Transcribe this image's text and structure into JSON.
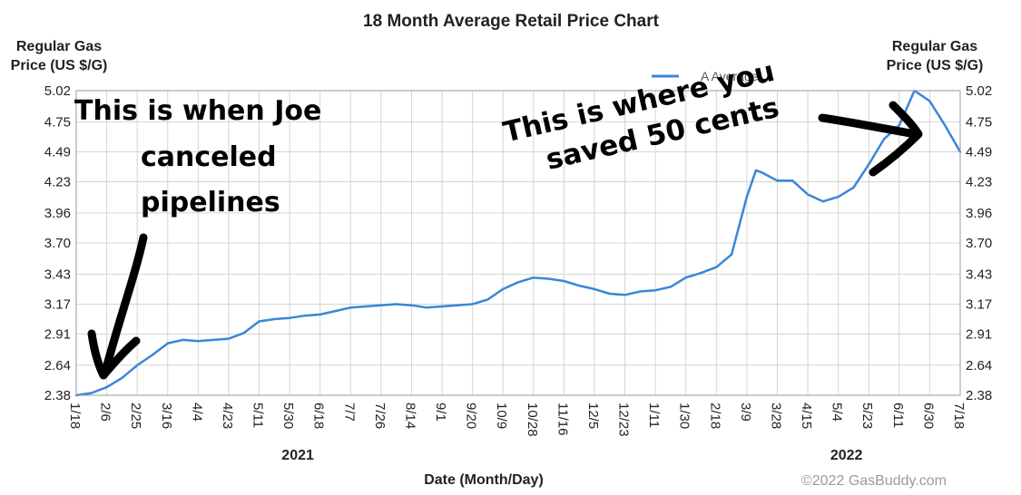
{
  "chart_data": {
    "type": "line",
    "title": "18 Month Average Retail Price Chart",
    "ylabel_left": [
      "Regular Gas",
      "Price (US $/G)"
    ],
    "ylabel_right": [
      "Regular Gas",
      "Price (US $/G)"
    ],
    "xlabel": "Date (Month/Day)",
    "credit": "©2022 GasBuddy.com",
    "ylim": [
      2.38,
      5.02
    ],
    "yticks": [
      "2.38",
      "2.64",
      "2.91",
      "3.17",
      "3.43",
      "3.70",
      "3.96",
      "4.23",
      "4.49",
      "4.75",
      "5.02"
    ],
    "xticks": [
      "1/18",
      "2/6",
      "2/25",
      "3/16",
      "4/4",
      "4/23",
      "5/11",
      "5/30",
      "6/18",
      "7/7",
      "7/26",
      "8/14",
      "9/1",
      "9/20",
      "10/9",
      "10/28",
      "11/16",
      "12/5",
      "12/23",
      "1/11",
      "1/30",
      "2/18",
      "3/9",
      "3/28",
      "4/15",
      "5/4",
      "5/23",
      "6/11",
      "6/30",
      "7/18"
    ],
    "years": [
      {
        "label": "2021",
        "tick_index": 7
      },
      {
        "label": "2022",
        "tick_index": 25
      }
    ],
    "grid": true,
    "series": [
      {
        "name": "USA Average",
        "legend_visible_text": "A Average",
        "color": "#3a86d8",
        "x_index": [
          0,
          0.5,
          1,
          1.5,
          2,
          2.5,
          3,
          3.5,
          4,
          4.5,
          5,
          5.5,
          6,
          6.5,
          7,
          7.5,
          8,
          8.5,
          9,
          9.5,
          10,
          10.5,
          11,
          11.5,
          12,
          12.5,
          13,
          13.5,
          14,
          14.5,
          15,
          15.5,
          16,
          16.5,
          17,
          17.5,
          18,
          18.5,
          19,
          19.5,
          20,
          20.5,
          21,
          21.5,
          22,
          22.3,
          22.5,
          23,
          23.5,
          24,
          24.5,
          25,
          25.5,
          26,
          26.5,
          27,
          27.5,
          28,
          28.5,
          29
        ],
        "values": [
          2.38,
          2.4,
          2.45,
          2.53,
          2.64,
          2.73,
          2.83,
          2.86,
          2.85,
          2.86,
          2.87,
          2.92,
          3.02,
          3.04,
          3.05,
          3.07,
          3.08,
          3.11,
          3.14,
          3.15,
          3.16,
          3.17,
          3.16,
          3.14,
          3.15,
          3.16,
          3.17,
          3.21,
          3.3,
          3.36,
          3.4,
          3.39,
          3.37,
          3.33,
          3.3,
          3.26,
          3.25,
          3.28,
          3.29,
          3.32,
          3.4,
          3.44,
          3.49,
          3.6,
          4.1,
          4.33,
          4.31,
          4.24,
          4.24,
          4.12,
          4.06,
          4.1,
          4.18,
          4.38,
          4.6,
          4.72,
          5.02,
          4.93,
          4.72,
          4.49
        ]
      }
    ]
  },
  "annotations": {
    "left_lines": [
      "This is when Joe",
      "canceled",
      "pipelines"
    ],
    "right_lines": [
      "This is where you",
      "saved 50 cents"
    ]
  }
}
